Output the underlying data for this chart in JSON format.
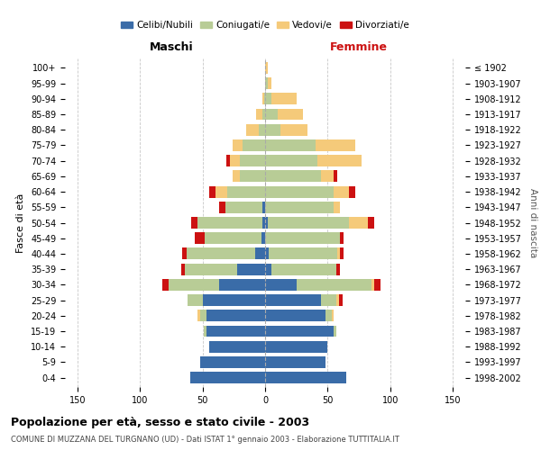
{
  "age_groups": [
    "0-4",
    "5-9",
    "10-14",
    "15-19",
    "20-24",
    "25-29",
    "30-34",
    "35-39",
    "40-44",
    "45-49",
    "50-54",
    "55-59",
    "60-64",
    "65-69",
    "70-74",
    "75-79",
    "80-84",
    "85-89",
    "90-94",
    "95-99",
    "100+"
  ],
  "birth_years": [
    "1998-2002",
    "1993-1997",
    "1988-1992",
    "1983-1987",
    "1978-1982",
    "1973-1977",
    "1968-1972",
    "1963-1967",
    "1958-1962",
    "1953-1957",
    "1948-1952",
    "1943-1947",
    "1938-1942",
    "1933-1937",
    "1928-1932",
    "1923-1927",
    "1918-1922",
    "1913-1917",
    "1908-1912",
    "1903-1907",
    "≤ 1902"
  ],
  "colors": {
    "celibi": "#3a6ca8",
    "coniugati": "#b8cc96",
    "vedovi": "#f5ca7a",
    "divorziati": "#cc1111"
  },
  "males": {
    "celibi": [
      60,
      52,
      45,
      47,
      47,
      50,
      37,
      22,
      8,
      3,
      2,
      2,
      0,
      0,
      0,
      0,
      0,
      0,
      0,
      0,
      0
    ],
    "coniugati": [
      0,
      0,
      0,
      2,
      5,
      12,
      40,
      42,
      55,
      45,
      52,
      30,
      30,
      20,
      20,
      18,
      5,
      2,
      1,
      0,
      0
    ],
    "vedovi": [
      0,
      0,
      0,
      0,
      2,
      0,
      0,
      0,
      0,
      0,
      0,
      0,
      10,
      6,
      8,
      8,
      10,
      5,
      1,
      0,
      0
    ],
    "divorziati": [
      0,
      0,
      0,
      0,
      0,
      0,
      5,
      3,
      3,
      8,
      5,
      5,
      5,
      0,
      3,
      0,
      0,
      0,
      0,
      0,
      0
    ]
  },
  "females": {
    "celibi": [
      65,
      48,
      50,
      55,
      48,
      45,
      25,
      5,
      3,
      0,
      2,
      0,
      0,
      0,
      0,
      0,
      0,
      0,
      0,
      0,
      0
    ],
    "coniugati": [
      0,
      0,
      0,
      2,
      5,
      12,
      60,
      52,
      55,
      60,
      65,
      55,
      55,
      45,
      42,
      40,
      12,
      10,
      5,
      2,
      0
    ],
    "vedovi": [
      0,
      0,
      0,
      0,
      2,
      2,
      2,
      0,
      2,
      0,
      15,
      5,
      12,
      10,
      35,
      32,
      22,
      20,
      20,
      3,
      2
    ],
    "divorziati": [
      0,
      0,
      0,
      0,
      0,
      3,
      5,
      3,
      3,
      3,
      5,
      0,
      5,
      3,
      0,
      0,
      0,
      0,
      0,
      0,
      0
    ]
  },
  "xlim": 160,
  "title": "Popolazione per età, sesso e stato civile - 2003",
  "subtitle": "COMUNE DI MUZZANA DEL TURGNANO (UD) - Dati ISTAT 1° gennaio 2003 - Elaborazione TUTTITALIA.IT",
  "ylabel": "Fasce di età",
  "ylabel_right": "Anni di nascita",
  "legend_labels": [
    "Celibi/Nubili",
    "Coniugati/e",
    "Vedovi/e",
    "Divorziati/e"
  ],
  "maschi_label": "Maschi",
  "femmine_label": "Femmine",
  "bg_color": "#ffffff",
  "grid_color": "#c8c8c8",
  "bar_height": 0.75
}
